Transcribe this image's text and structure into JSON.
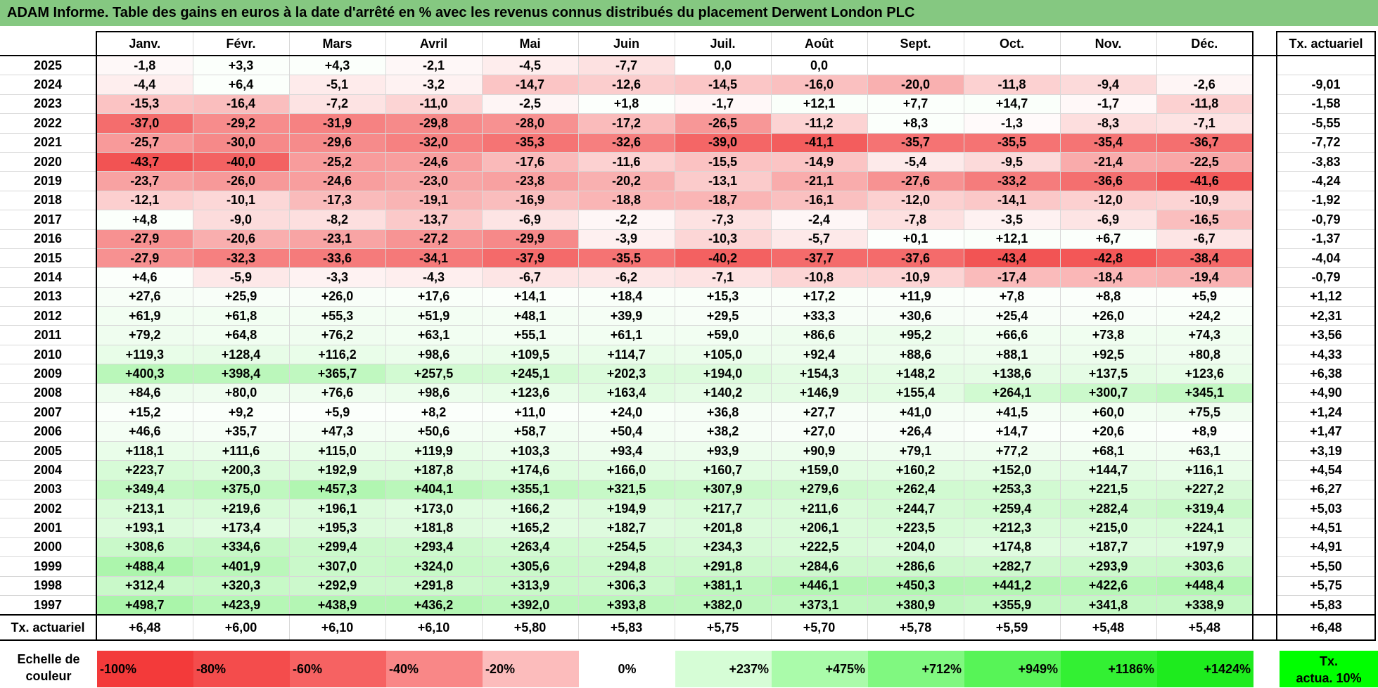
{
  "title": "ADAM Informe. Table des gains en euros à la date d'arrêté en % avec les revenus connus distribués du placement Derwent London PLC",
  "months": [
    "Janv.",
    "Févr.",
    "Mars",
    "Avril",
    "Mai",
    "Juin",
    "Juil.",
    "Août",
    "Sept.",
    "Oct.",
    "Nov.",
    "Déc."
  ],
  "tx_header": "Tx. actuariel",
  "rows": [
    {
      "year": "2025",
      "values": [
        "-1,8",
        "+3,3",
        "+4,3",
        "-2,1",
        "-4,5",
        "-7,7",
        "0,0",
        "0,0",
        "",
        "",
        "",
        ""
      ],
      "tx": ""
    },
    {
      "year": "2024",
      "values": [
        "-4,4",
        "+6,4",
        "-5,1",
        "-3,2",
        "-14,7",
        "-12,6",
        "-14,5",
        "-16,0",
        "-20,0",
        "-11,8",
        "-9,4",
        "-2,6"
      ],
      "tx": "-9,01"
    },
    {
      "year": "2023",
      "values": [
        "-15,3",
        "-16,4",
        "-7,2",
        "-11,0",
        "-2,5",
        "+1,8",
        "-1,7",
        "+12,1",
        "+7,7",
        "+14,7",
        "-1,7",
        "-11,8"
      ],
      "tx": "-1,58"
    },
    {
      "year": "2022",
      "values": [
        "-37,0",
        "-29,2",
        "-31,9",
        "-29,8",
        "-28,0",
        "-17,2",
        "-26,5",
        "-11,2",
        "+8,3",
        "-1,3",
        "-8,3",
        "-7,1"
      ],
      "tx": "-5,55"
    },
    {
      "year": "2021",
      "values": [
        "-25,7",
        "-30,0",
        "-29,6",
        "-32,0",
        "-35,3",
        "-32,6",
        "-39,0",
        "-41,1",
        "-35,7",
        "-35,5",
        "-35,4",
        "-36,7"
      ],
      "tx": "-7,72"
    },
    {
      "year": "2020",
      "values": [
        "-43,7",
        "-40,0",
        "-25,2",
        "-24,6",
        "-17,6",
        "-11,6",
        "-15,5",
        "-14,9",
        "-5,4",
        "-9,5",
        "-21,4",
        "-22,5"
      ],
      "tx": "-3,83"
    },
    {
      "year": "2019",
      "values": [
        "-23,7",
        "-26,0",
        "-24,6",
        "-23,0",
        "-23,8",
        "-20,2",
        "-13,1",
        "-21,1",
        "-27,6",
        "-33,2",
        "-36,6",
        "-41,6"
      ],
      "tx": "-4,24"
    },
    {
      "year": "2018",
      "values": [
        "-12,1",
        "-10,1",
        "-17,3",
        "-19,1",
        "-16,9",
        "-18,8",
        "-18,7",
        "-16,1",
        "-12,0",
        "-14,1",
        "-12,0",
        "-10,9"
      ],
      "tx": "-1,92"
    },
    {
      "year": "2017",
      "values": [
        "+4,8",
        "-9,0",
        "-8,2",
        "-13,7",
        "-6,9",
        "-2,2",
        "-7,3",
        "-2,4",
        "-7,8",
        "-3,5",
        "-6,9",
        "-16,5"
      ],
      "tx": "-0,79"
    },
    {
      "year": "2016",
      "values": [
        "-27,9",
        "-20,6",
        "-23,1",
        "-27,2",
        "-29,9",
        "-3,9",
        "-10,3",
        "-5,7",
        "+0,1",
        "+12,1",
        "+6,7",
        "-6,7"
      ],
      "tx": "-1,37"
    },
    {
      "year": "2015",
      "values": [
        "-27,9",
        "-32,3",
        "-33,6",
        "-34,1",
        "-37,9",
        "-35,5",
        "-40,2",
        "-37,7",
        "-37,6",
        "-43,4",
        "-42,8",
        "-38,4"
      ],
      "tx": "-4,04"
    },
    {
      "year": "2014",
      "values": [
        "+4,6",
        "-5,9",
        "-3,3",
        "-4,3",
        "-6,7",
        "-6,2",
        "-7,1",
        "-10,8",
        "-10,9",
        "-17,4",
        "-18,4",
        "-19,4"
      ],
      "tx": "-0,79"
    },
    {
      "year": "2013",
      "values": [
        "+27,6",
        "+25,9",
        "+26,0",
        "+17,6",
        "+14,1",
        "+18,4",
        "+15,3",
        "+17,2",
        "+11,9",
        "+7,8",
        "+8,8",
        "+5,9"
      ],
      "tx": "+1,12"
    },
    {
      "year": "2012",
      "values": [
        "+61,9",
        "+61,8",
        "+55,3",
        "+51,9",
        "+48,1",
        "+39,9",
        "+29,5",
        "+33,3",
        "+30,6",
        "+25,4",
        "+26,0",
        "+24,2"
      ],
      "tx": "+2,31"
    },
    {
      "year": "2011",
      "values": [
        "+79,2",
        "+64,8",
        "+76,2",
        "+63,1",
        "+55,1",
        "+61,1",
        "+59,0",
        "+86,6",
        "+95,2",
        "+66,6",
        "+73,8",
        "+74,3"
      ],
      "tx": "+3,56"
    },
    {
      "year": "2010",
      "values": [
        "+119,3",
        "+128,4",
        "+116,2",
        "+98,6",
        "+109,5",
        "+114,7",
        "+105,0",
        "+92,4",
        "+88,6",
        "+88,1",
        "+92,5",
        "+80,8"
      ],
      "tx": "+4,33"
    },
    {
      "year": "2009",
      "values": [
        "+400,3",
        "+398,4",
        "+365,7",
        "+257,5",
        "+245,1",
        "+202,3",
        "+194,0",
        "+154,3",
        "+148,2",
        "+138,6",
        "+137,5",
        "+123,6"
      ],
      "tx": "+6,38"
    },
    {
      "year": "2008",
      "values": [
        "+84,6",
        "+80,0",
        "+76,6",
        "+98,6",
        "+123,6",
        "+163,4",
        "+140,2",
        "+146,9",
        "+155,4",
        "+264,1",
        "+300,7",
        "+345,1"
      ],
      "tx": "+4,90"
    },
    {
      "year": "2007",
      "values": [
        "+15,2",
        "+9,2",
        "+5,9",
        "+8,2",
        "+11,0",
        "+24,0",
        "+36,8",
        "+27,7",
        "+41,0",
        "+41,5",
        "+60,0",
        "+75,5"
      ],
      "tx": "+1,24"
    },
    {
      "year": "2006",
      "values": [
        "+46,6",
        "+35,7",
        "+47,3",
        "+50,6",
        "+58,7",
        "+50,4",
        "+38,2",
        "+27,0",
        "+26,4",
        "+14,7",
        "+20,6",
        "+8,9"
      ],
      "tx": "+1,47"
    },
    {
      "year": "2005",
      "values": [
        "+118,1",
        "+111,6",
        "+115,0",
        "+119,9",
        "+103,3",
        "+93,4",
        "+93,9",
        "+90,9",
        "+79,1",
        "+77,2",
        "+68,1",
        "+63,1"
      ],
      "tx": "+3,19"
    },
    {
      "year": "2004",
      "values": [
        "+223,7",
        "+200,3",
        "+192,9",
        "+187,8",
        "+174,6",
        "+166,0",
        "+160,7",
        "+159,0",
        "+160,2",
        "+152,0",
        "+144,7",
        "+116,1"
      ],
      "tx": "+4,54"
    },
    {
      "year": "2003",
      "values": [
        "+349,4",
        "+375,0",
        "+457,3",
        "+404,1",
        "+355,1",
        "+321,5",
        "+307,9",
        "+279,6",
        "+262,4",
        "+253,3",
        "+221,5",
        "+227,2"
      ],
      "tx": "+6,27"
    },
    {
      "year": "2002",
      "values": [
        "+213,1",
        "+219,6",
        "+196,1",
        "+173,0",
        "+166,2",
        "+194,9",
        "+217,7",
        "+211,6",
        "+244,7",
        "+259,4",
        "+282,4",
        "+319,4"
      ],
      "tx": "+5,03"
    },
    {
      "year": "2001",
      "values": [
        "+193,1",
        "+173,4",
        "+195,3",
        "+181,8",
        "+165,2",
        "+182,7",
        "+201,8",
        "+206,1",
        "+223,5",
        "+212,3",
        "+215,0",
        "+224,1"
      ],
      "tx": "+4,51"
    },
    {
      "year": "2000",
      "values": [
        "+308,6",
        "+334,6",
        "+299,4",
        "+293,4",
        "+263,4",
        "+254,5",
        "+234,3",
        "+222,5",
        "+204,0",
        "+174,8",
        "+187,7",
        "+197,9"
      ],
      "tx": "+4,91"
    },
    {
      "year": "1999",
      "values": [
        "+488,4",
        "+401,9",
        "+307,0",
        "+324,0",
        "+305,6",
        "+294,8",
        "+291,8",
        "+284,6",
        "+286,6",
        "+282,7",
        "+293,9",
        "+303,6"
      ],
      "tx": "+5,50"
    },
    {
      "year": "1998",
      "values": [
        "+312,4",
        "+320,3",
        "+292,9",
        "+291,8",
        "+313,9",
        "+306,3",
        "+381,1",
        "+446,1",
        "+450,3",
        "+441,2",
        "+422,6",
        "+448,4"
      ],
      "tx": "+5,75"
    },
    {
      "year": "1997",
      "values": [
        "+498,7",
        "+423,9",
        "+438,9",
        "+436,2",
        "+392,0",
        "+393,8",
        "+382,0",
        "+373,1",
        "+380,9",
        "+355,9",
        "+341,8",
        "+338,9"
      ],
      "tx": "+5,83"
    }
  ],
  "footer": {
    "label": "Tx. actuariel",
    "values": [
      "+6,48",
      "+6,00",
      "+6,10",
      "+6,10",
      "+5,80",
      "+5,83",
      "+5,75",
      "+5,70",
      "+5,78",
      "+5,59",
      "+5,48",
      "+5,48"
    ],
    "tx": "+6,48"
  },
  "scale": {
    "label_line1": "Echelle de",
    "label_line2": "couleur",
    "cells": [
      {
        "label": "-100%",
        "color": "#f33a3a",
        "kind": "neg"
      },
      {
        "label": "-80%",
        "color": "#f44c4c",
        "kind": "neg"
      },
      {
        "label": "-60%",
        "color": "#f66262",
        "kind": "neg"
      },
      {
        "label": "-40%",
        "color": "#f98787",
        "kind": "neg"
      },
      {
        "label": "-20%",
        "color": "#fcbcbc",
        "kind": "neg"
      },
      {
        "label": "0%",
        "color": "#ffffff",
        "kind": "zero"
      },
      {
        "label": "+237%",
        "color": "#d6fdd6",
        "kind": "pos"
      },
      {
        "label": "+475%",
        "color": "#aafbaa",
        "kind": "pos"
      },
      {
        "label": "+712%",
        "color": "#80f880",
        "kind": "pos"
      },
      {
        "label": "+949%",
        "color": "#57f457",
        "kind": "pos"
      },
      {
        "label": "+1186%",
        "color": "#33f033",
        "kind": "pos"
      },
      {
        "label": "+1424%",
        "color": "#1eeb1e",
        "kind": "pos"
      }
    ],
    "tx_line1": "Tx.",
    "tx_line2": "actua. 10%",
    "tx_color": "#00ff00"
  },
  "colors": {
    "title_bg": "#85c881",
    "neg_strong": "#f24e4e",
    "pos_strong": "#aaf5aa"
  }
}
